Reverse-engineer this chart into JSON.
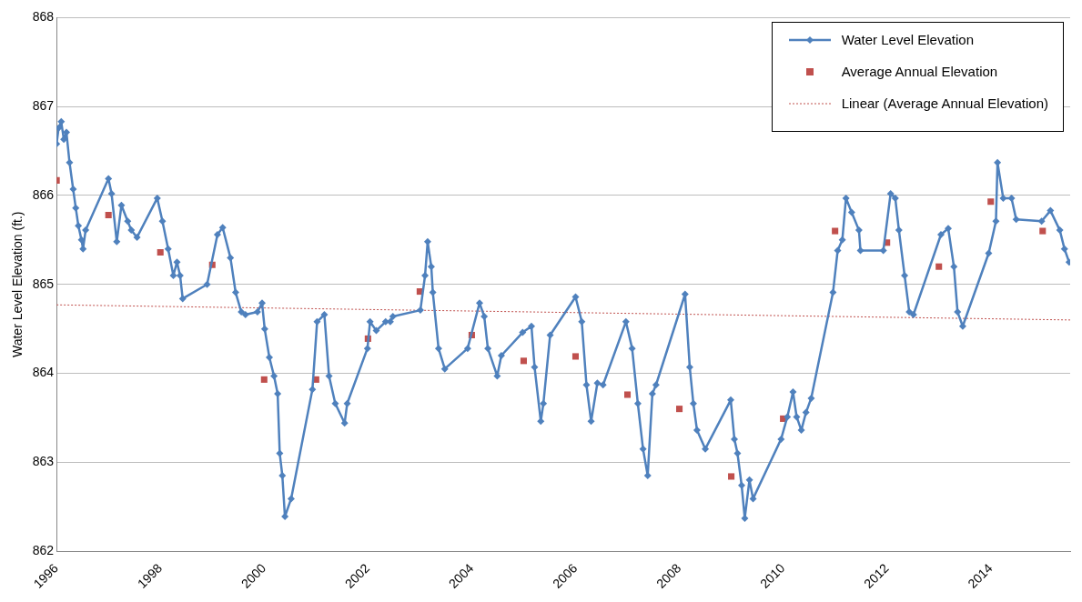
{
  "chart_data": {
    "type": "line",
    "ylabel": "Water Level Elevation (ft.)",
    "xlim": [
      1996,
      2015.53
    ],
    "xticks": [
      1996,
      1998,
      2000,
      2002,
      2004,
      2006,
      2008,
      2010,
      2012,
      2014
    ],
    "ylim": [
      862,
      868
    ],
    "yticks": [
      862,
      863,
      864,
      865,
      866,
      867,
      868
    ],
    "grid": "y",
    "legend": "top right",
    "series": [
      {
        "name": "Water Level Elevation",
        "type": "line",
        "color": "#4f81bd",
        "marker": "diamond",
        "line_style": "solid",
        "x": [
          1996.0,
          1996.04,
          1996.09,
          1996.14,
          1996.19,
          1996.25,
          1996.32,
          1996.37,
          1996.42,
          1996.48,
          1996.51,
          1996.56,
          1997.0,
          1997.06,
          1997.16,
          1997.25,
          1997.37,
          1997.44,
          1997.55,
          1997.94,
          1998.04,
          1998.15,
          1998.25,
          1998.32,
          1998.38,
          1998.43,
          1998.9,
          1999.1,
          1999.2,
          1999.35,
          1999.45,
          1999.56,
          1999.64,
          1999.87,
          1999.96,
          2000.01,
          2000.1,
          2000.19,
          2000.26,
          2000.3,
          2000.35,
          2000.4,
          2000.52,
          2000.93,
          2001.02,
          2001.16,
          2001.25,
          2001.37,
          2001.55,
          2001.6,
          2001.99,
          2002.04,
          2002.16,
          2002.34,
          2002.43,
          2002.48,
          2003.01,
          2003.1,
          2003.15,
          2003.22,
          2003.25,
          2003.36,
          2003.48,
          2003.92,
          2004.15,
          2004.24,
          2004.31,
          2004.49,
          2004.57,
          2004.98,
          2005.15,
          2005.21,
          2005.33,
          2005.38,
          2005.51,
          2006.0,
          2006.12,
          2006.21,
          2006.3,
          2006.42,
          2006.53,
          2006.97,
          2007.09,
          2007.2,
          2007.3,
          2007.39,
          2007.48,
          2007.55,
          2008.11,
          2008.2,
          2008.27,
          2008.34,
          2008.5,
          2008.99,
          2009.06,
          2009.12,
          2009.2,
          2009.26,
          2009.35,
          2009.42,
          2009.96,
          2010.08,
          2010.19,
          2010.26,
          2010.35,
          2010.44,
          2010.54,
          2010.96,
          2011.05,
          2011.14,
          2011.21,
          2011.32,
          2011.46,
          2011.49,
          2011.93,
          2012.07,
          2012.16,
          2012.23,
          2012.34,
          2012.43,
          2012.51,
          2013.04,
          2013.18,
          2013.29,
          2013.36,
          2013.46,
          2013.96,
          2014.1,
          2014.13,
          2014.24,
          2014.4,
          2014.49,
          2014.98,
          2015.15,
          2015.33,
          2015.42,
          2015.51
        ],
        "values": [
          866.58,
          866.76,
          866.83,
          866.63,
          866.71,
          866.37,
          866.07,
          865.86,
          865.66,
          865.5,
          865.4,
          865.61,
          866.19,
          866.02,
          865.48,
          865.89,
          865.71,
          865.61,
          865.53,
          865.97,
          865.71,
          865.4,
          865.1,
          865.25,
          865.1,
          864.84,
          865.0,
          865.56,
          865.64,
          865.3,
          864.91,
          864.69,
          864.66,
          864.69,
          864.79,
          864.5,
          864.18,
          863.97,
          863.77,
          863.1,
          862.85,
          862.39,
          862.59,
          863.82,
          864.58,
          864.66,
          863.97,
          863.66,
          863.44,
          863.66,
          864.28,
          864.58,
          864.48,
          864.58,
          864.58,
          864.64,
          864.71,
          865.1,
          865.48,
          865.2,
          864.91,
          864.28,
          864.05,
          864.28,
          864.79,
          864.64,
          864.28,
          863.97,
          864.2,
          864.46,
          864.53,
          864.07,
          863.46,
          863.66,
          864.43,
          864.86,
          864.58,
          863.87,
          863.46,
          863.89,
          863.87,
          864.58,
          864.28,
          863.66,
          863.15,
          862.85,
          863.77,
          863.87,
          864.89,
          864.07,
          863.66,
          863.36,
          863.15,
          863.7,
          863.26,
          863.1,
          862.74,
          862.37,
          862.8,
          862.59,
          863.26,
          863.51,
          863.79,
          863.51,
          863.36,
          863.56,
          863.72,
          864.91,
          865.38,
          865.5,
          865.97,
          865.81,
          865.61,
          865.38,
          865.38,
          866.02,
          865.97,
          865.61,
          865.1,
          864.69,
          864.66,
          865.56,
          865.63,
          865.2,
          864.69,
          864.53,
          865.35,
          865.71,
          866.37,
          865.97,
          865.97,
          865.73,
          865.71,
          865.83,
          865.61,
          865.4,
          865.25
        ]
      },
      {
        "name": "Average Annual Elevation",
        "type": "scatter",
        "color": "#c0504d",
        "marker": "square",
        "x": [
          1996,
          1997,
          1998,
          1999,
          2000,
          2001,
          2002,
          2003,
          2004,
          2005,
          2006,
          2007,
          2008,
          2009,
          2010,
          2011,
          2012,
          2013,
          2014,
          2015
        ],
        "values": [
          866.17,
          865.78,
          865.36,
          865.22,
          863.93,
          863.93,
          864.39,
          864.92,
          864.43,
          864.14,
          864.19,
          863.76,
          863.6,
          862.84,
          863.49,
          865.6,
          865.47,
          865.2,
          865.93,
          865.6
        ]
      },
      {
        "name": "Linear (Average Annual Elevation)",
        "type": "line",
        "color": "#c0504d",
        "marker": "none",
        "line_style": "dotted",
        "x": [
          1996,
          2015.53
        ],
        "values": [
          864.77,
          864.6
        ]
      }
    ]
  }
}
